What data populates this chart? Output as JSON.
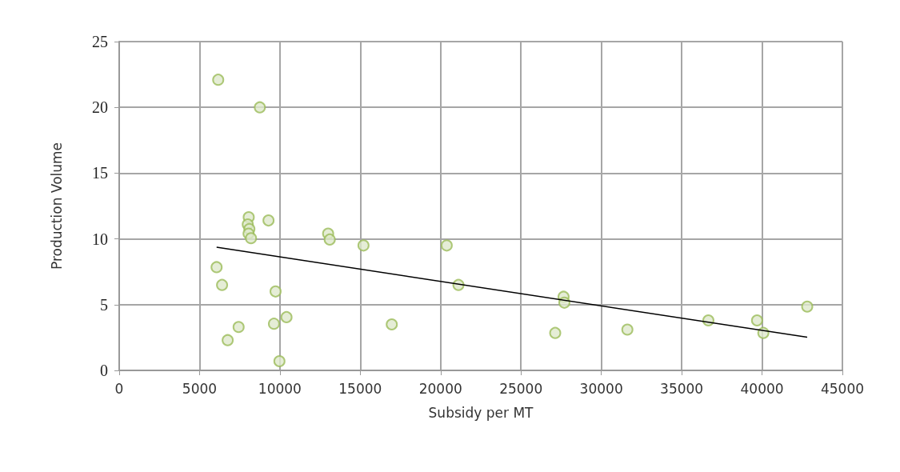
{
  "chart_data": {
    "type": "scatter",
    "xlabel": "Subsidy per MT",
    "ylabel": "Production Volume",
    "xlim": [
      0,
      45000
    ],
    "xticks": [
      0,
      5000,
      10000,
      15000,
      20000,
      25000,
      30000,
      35000,
      40000,
      45000
    ],
    "ylim": [
      0,
      25
    ],
    "yticks": [
      0,
      5,
      10,
      15,
      20,
      25
    ],
    "grid": true,
    "marker": "circle",
    "series": [
      {
        "color": "#9bbb59",
        "x": [
          6160,
          8750,
          8060,
          8000,
          8100,
          8050,
          8200,
          9290,
          13000,
          13100,
          15200,
          20380,
          21110,
          6060,
          6400,
          9730,
          9630,
          10410,
          7430,
          6750,
          9970,
          16960,
          27130,
          27650,
          27700,
          31620,
          36660,
          39690,
          40080,
          42810
        ],
        "values": [
          22.1,
          20.0,
          11.65,
          11.1,
          10.75,
          10.4,
          10.05,
          11.4,
          10.4,
          9.95,
          9.5,
          9.5,
          6.5,
          7.85,
          6.5,
          6.0,
          3.55,
          4.05,
          3.3,
          2.3,
          0.7,
          3.5,
          2.85,
          5.6,
          5.15,
          3.1,
          3.8,
          3.8,
          2.85,
          4.85
        ]
      },
      {
        "type": "line",
        "color": "#000000",
        "marker": "none",
        "x": [
          6060,
          42810
        ],
        "values": [
          9.37,
          2.52
        ]
      }
    ]
  }
}
